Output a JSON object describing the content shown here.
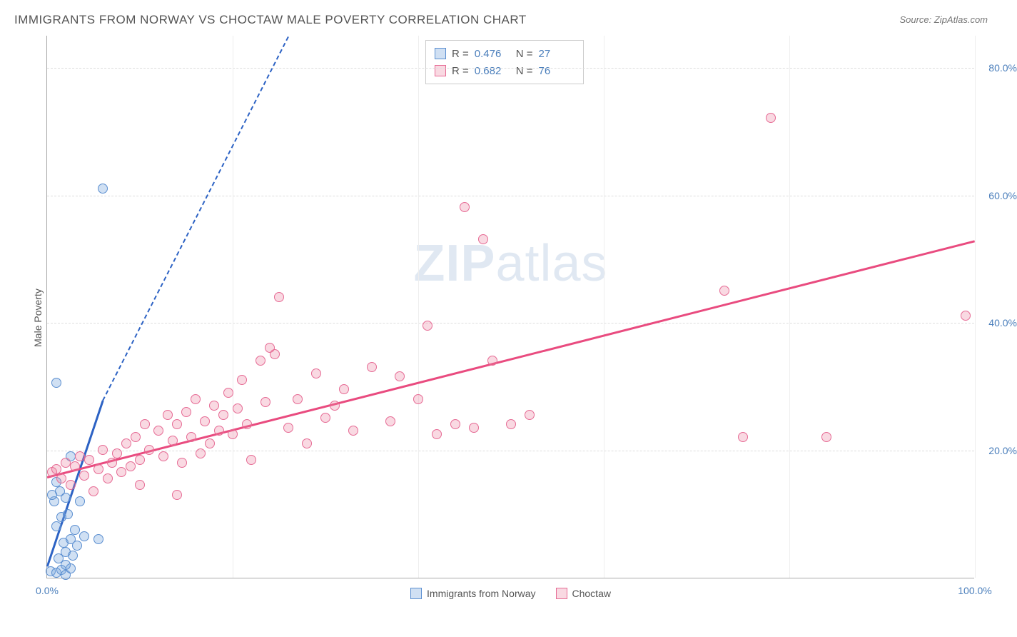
{
  "title": "IMMIGRANTS FROM NORWAY VS CHOCTAW MALE POVERTY CORRELATION CHART",
  "source": "Source: ZipAtlas.com",
  "ylabel": "Male Poverty",
  "watermark_a": "ZIP",
  "watermark_b": "atlas",
  "chart": {
    "type": "scatter",
    "xlim": [
      0,
      100
    ],
    "ylim": [
      0,
      85
    ],
    "xticks": [
      {
        "pos": 0,
        "label": "0.0%"
      },
      {
        "pos": 100,
        "label": "100.0%"
      }
    ],
    "xgrid": [
      20,
      40,
      60,
      80,
      100
    ],
    "yticks": [
      {
        "pos": 20,
        "label": "20.0%"
      },
      {
        "pos": 40,
        "label": "40.0%"
      },
      {
        "pos": 60,
        "label": "60.0%"
      },
      {
        "pos": 80,
        "label": "80.0%"
      }
    ],
    "grid_color": "#dddddd",
    "background_color": "#ffffff",
    "marker_radius": 7,
    "marker_stroke_width": 1.2,
    "series": [
      {
        "id": "norway",
        "label": "Immigrants from Norway",
        "fill": "rgba(120,165,220,0.35)",
        "stroke": "#5a8ed0",
        "trend_color": "#2c62c4",
        "r": "0.476",
        "n": "27",
        "trend": {
          "x1": 0,
          "y1": 2,
          "x2": 6,
          "y2": 28,
          "dash_extend_to_x": 26,
          "dash_extend_to_y": 85
        },
        "points": [
          [
            0.4,
            1.0
          ],
          [
            1.0,
            0.8
          ],
          [
            1.5,
            1.2
          ],
          [
            2.0,
            0.5
          ],
          [
            2.5,
            1.5
          ],
          [
            1.2,
            3.0
          ],
          [
            2.0,
            4.0
          ],
          [
            2.8,
            3.5
          ],
          [
            1.8,
            5.5
          ],
          [
            2.5,
            6.0
          ],
          [
            3.2,
            5.0
          ],
          [
            1.0,
            8.0
          ],
          [
            1.5,
            9.5
          ],
          [
            2.2,
            10.0
          ],
          [
            0.8,
            12.0
          ],
          [
            1.4,
            13.5
          ],
          [
            2.0,
            12.5
          ],
          [
            1.0,
            15.0
          ],
          [
            0.5,
            13.0
          ],
          [
            3.0,
            7.5
          ],
          [
            4.0,
            6.5
          ],
          [
            5.5,
            6.0
          ],
          [
            3.5,
            12.0
          ],
          [
            2.5,
            19.0
          ],
          [
            1.0,
            30.5
          ],
          [
            6.0,
            61.0
          ],
          [
            2.0,
            2.0
          ]
        ]
      },
      {
        "id": "choctaw",
        "label": "Choctaw",
        "fill": "rgba(235,130,160,0.30)",
        "stroke": "#e66a94",
        "trend_color": "#e94b7f",
        "r": "0.682",
        "n": "76",
        "trend": {
          "x1": 0,
          "y1": 16,
          "x2": 100,
          "y2": 53
        },
        "points": [
          [
            0.5,
            16.5
          ],
          [
            1.0,
            17.0
          ],
          [
            1.5,
            15.5
          ],
          [
            2.0,
            18.0
          ],
          [
            2.5,
            14.5
          ],
          [
            3.0,
            17.5
          ],
          [
            3.5,
            19.0
          ],
          [
            4.0,
            16.0
          ],
          [
            4.5,
            18.5
          ],
          [
            5.0,
            13.5
          ],
          [
            5.5,
            17.0
          ],
          [
            6.0,
            20.0
          ],
          [
            6.5,
            15.5
          ],
          [
            7.0,
            18.0
          ],
          [
            7.5,
            19.5
          ],
          [
            8.0,
            16.5
          ],
          [
            8.5,
            21.0
          ],
          [
            9.0,
            17.5
          ],
          [
            9.5,
            22.0
          ],
          [
            10.0,
            18.5
          ],
          [
            10.5,
            24.0
          ],
          [
            11.0,
            20.0
          ],
          [
            12.0,
            23.0
          ],
          [
            12.5,
            19.0
          ],
          [
            13.0,
            25.5
          ],
          [
            13.5,
            21.5
          ],
          [
            14.0,
            24.0
          ],
          [
            14.5,
            18.0
          ],
          [
            15.0,
            26.0
          ],
          [
            15.5,
            22.0
          ],
          [
            16.0,
            28.0
          ],
          [
            16.5,
            19.5
          ],
          [
            17.0,
            24.5
          ],
          [
            17.5,
            21.0
          ],
          [
            18.0,
            27.0
          ],
          [
            18.5,
            23.0
          ],
          [
            19.0,
            25.5
          ],
          [
            19.5,
            29.0
          ],
          [
            20.0,
            22.5
          ],
          [
            20.5,
            26.5
          ],
          [
            21.0,
            31.0
          ],
          [
            21.5,
            24.0
          ],
          [
            22.0,
            18.5
          ],
          [
            23.0,
            34.0
          ],
          [
            23.5,
            27.5
          ],
          [
            24.0,
            36.0
          ],
          [
            24.5,
            35.0
          ],
          [
            25.0,
            44.0
          ],
          [
            26.0,
            23.5
          ],
          [
            27.0,
            28.0
          ],
          [
            28.0,
            21.0
          ],
          [
            29.0,
            32.0
          ],
          [
            30.0,
            25.0
          ],
          [
            31.0,
            27.0
          ],
          [
            32.0,
            29.5
          ],
          [
            33.0,
            23.0
          ],
          [
            35.0,
            33.0
          ],
          [
            37.0,
            24.5
          ],
          [
            38.0,
            31.5
          ],
          [
            40.0,
            28.0
          ],
          [
            41.0,
            39.5
          ],
          [
            42.0,
            22.5
          ],
          [
            44.0,
            24.0
          ],
          [
            45.0,
            58.0
          ],
          [
            46.0,
            23.5
          ],
          [
            47.0,
            53.0
          ],
          [
            48.0,
            34.0
          ],
          [
            50.0,
            24.0
          ],
          [
            52.0,
            25.5
          ],
          [
            73.0,
            45.0
          ],
          [
            75.0,
            22.0
          ],
          [
            78.0,
            72.0
          ],
          [
            84.0,
            22.0
          ],
          [
            99.0,
            41.0
          ],
          [
            14.0,
            13.0
          ],
          [
            10.0,
            14.5
          ]
        ]
      }
    ]
  },
  "legend_top_labels": {
    "r": "R =",
    "n": "N ="
  },
  "legend_bottom": [
    {
      "label": "Immigrants from Norway",
      "fill": "rgba(120,165,220,0.35)",
      "stroke": "#5a8ed0"
    },
    {
      "label": "Choctaw",
      "fill": "rgba(235,130,160,0.30)",
      "stroke": "#e66a94"
    }
  ]
}
